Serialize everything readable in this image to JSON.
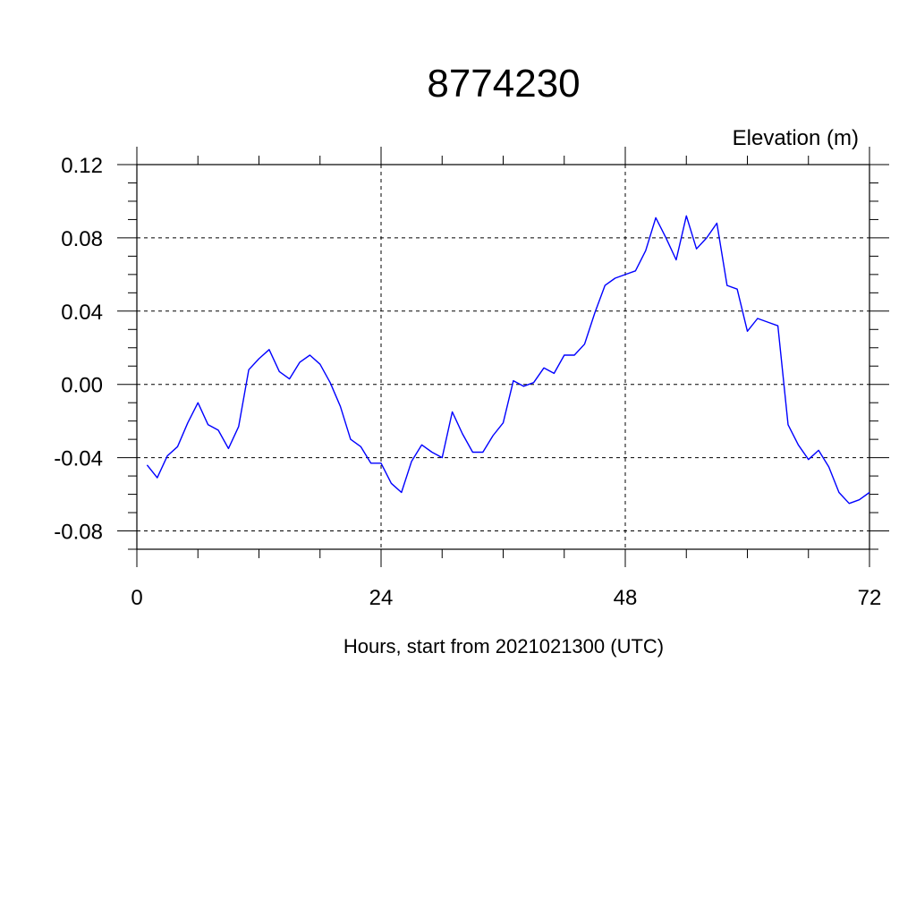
{
  "chart_data": {
    "type": "line",
    "title": "8774230",
    "ylabel": "Elevation (m)",
    "xlabel": "Hours, start from 2021021300 (UTC)",
    "xlim": [
      0,
      72
    ],
    "ylim": [
      -0.09,
      0.12
    ],
    "x_ticks": [
      0,
      24,
      48,
      72
    ],
    "x_tick_labels": [
      "0",
      "24",
      "48",
      "72"
    ],
    "y_ticks": [
      -0.08,
      -0.04,
      0.0,
      0.04,
      0.08,
      0.12
    ],
    "y_tick_labels": [
      "-0.08",
      "-0.04",
      "0.00",
      "0.04",
      "0.08",
      "0.12"
    ],
    "grid": true,
    "colors": {
      "series": "#0000ff",
      "axis": "#000000",
      "grid": "#000000"
    },
    "series": [
      {
        "x": [
          1,
          2,
          3,
          4,
          5,
          6,
          7,
          8,
          9,
          10,
          11,
          12,
          13,
          14,
          15,
          16,
          17,
          18,
          19,
          20,
          21,
          22,
          23,
          24,
          25,
          26,
          27,
          28,
          29,
          30,
          31,
          32,
          33,
          34,
          35,
          36,
          37,
          38,
          39,
          40,
          41,
          42,
          43,
          44,
          45,
          46,
          47,
          48,
          49,
          50,
          51,
          52,
          53,
          54,
          55,
          56,
          57,
          58,
          59,
          60,
          61,
          62,
          63,
          64,
          65,
          66,
          67,
          68,
          69,
          70,
          71,
          72
        ],
        "values": [
          -0.044,
          -0.051,
          -0.039,
          -0.034,
          -0.021,
          -0.01,
          -0.022,
          -0.025,
          -0.035,
          -0.023,
          0.008,
          0.014,
          0.019,
          0.007,
          0.003,
          0.012,
          0.016,
          0.011,
          0.001,
          -0.012,
          -0.03,
          -0.034,
          -0.043,
          -0.043,
          -0.054,
          -0.059,
          -0.042,
          -0.033,
          -0.037,
          -0.04,
          -0.015,
          -0.027,
          -0.037,
          -0.037,
          -0.028,
          -0.021,
          0.002,
          -0.001,
          0.001,
          0.009,
          0.006,
          0.016,
          0.016,
          0.022,
          0.039,
          0.054,
          0.058,
          0.06,
          0.062,
          0.073,
          0.091,
          0.08,
          0.068,
          0.092,
          0.074,
          0.08,
          0.088,
          0.054,
          0.052,
          0.029,
          0.036,
          0.034,
          0.032,
          -0.022,
          -0.033,
          -0.041,
          -0.036,
          -0.045,
          -0.059,
          -0.065,
          -0.063,
          -0.059
        ]
      }
    ]
  }
}
